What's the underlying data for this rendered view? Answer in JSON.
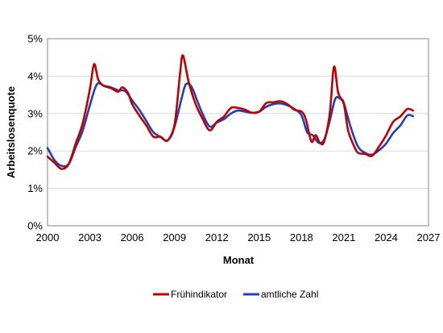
{
  "chart_data": {
    "type": "line",
    "xlabel": "Monat",
    "ylabel": "Arbeitslosenquote",
    "xlim": [
      2000,
      2027
    ],
    "ylim": [
      0,
      5
    ],
    "x_ticks": [
      2000,
      2003,
      2006,
      2009,
      2012,
      2015,
      2018,
      2021,
      2024,
      2027
    ],
    "x_tick_labels": [
      "2000",
      "2003",
      "2006",
      "2009",
      "2012",
      "2015",
      "2018",
      "2021",
      "2024",
      "2027"
    ],
    "y_ticks": [
      0,
      1,
      2,
      3,
      4,
      5
    ],
    "y_tick_labels": [
      "0%",
      "1%",
      "2%",
      "3%",
      "4%",
      "5%"
    ],
    "grid": "horizontal",
    "legend_position": "bottom",
    "series": [
      {
        "name": "Frühindikator",
        "color": "#c00000",
        "x": [
          2000.0,
          2000.5,
          2001.0,
          2001.5,
          2002.0,
          2002.5,
          2003.0,
          2003.3,
          2003.6,
          2004.0,
          2004.5,
          2005.0,
          2005.3,
          2005.7,
          2006.0,
          2006.5,
          2007.0,
          2007.5,
          2008.0,
          2008.5,
          2009.0,
          2009.4,
          2009.6,
          2010.0,
          2010.5,
          2011.0,
          2011.5,
          2012.0,
          2012.5,
          2013.0,
          2013.5,
          2014.0,
          2014.5,
          2015.0,
          2015.5,
          2016.0,
          2016.5,
          2017.0,
          2017.5,
          2018.0,
          2018.3,
          2018.7,
          2019.0,
          2019.3,
          2019.6,
          2020.0,
          2020.3,
          2020.6,
          2021.0,
          2021.3,
          2021.7,
          2022.0,
          2022.5,
          2023.0,
          2023.5,
          2024.0,
          2024.5,
          2025.0,
          2025.5,
          2025.9
        ],
        "y": [
          1.85,
          1.68,
          1.52,
          1.65,
          2.2,
          2.75,
          3.65,
          4.32,
          3.9,
          3.74,
          3.68,
          3.58,
          3.7,
          3.55,
          3.25,
          2.95,
          2.68,
          2.38,
          2.38,
          2.28,
          2.7,
          4.1,
          4.55,
          3.85,
          3.25,
          2.85,
          2.55,
          2.78,
          2.92,
          3.15,
          3.15,
          3.1,
          3.02,
          3.05,
          3.28,
          3.3,
          3.33,
          3.25,
          3.1,
          3.05,
          2.85,
          2.25,
          2.42,
          2.22,
          2.25,
          3.0,
          4.25,
          3.55,
          3.25,
          2.55,
          2.15,
          1.95,
          1.92,
          1.87,
          2.12,
          2.42,
          2.78,
          2.92,
          3.12,
          3.08
        ]
      },
      {
        "name": "amtliche Zahl",
        "color": "#1f3fbf",
        "x": [
          2000.0,
          2000.5,
          2001.0,
          2001.5,
          2002.0,
          2002.5,
          2003.0,
          2003.5,
          2004.0,
          2004.5,
          2005.0,
          2005.5,
          2006.0,
          2006.5,
          2007.0,
          2007.5,
          2008.0,
          2008.5,
          2009.0,
          2009.5,
          2009.8,
          2010.2,
          2010.6,
          2011.0,
          2011.5,
          2012.0,
          2012.5,
          2013.0,
          2013.5,
          2014.0,
          2014.5,
          2015.0,
          2015.5,
          2016.0,
          2016.5,
          2017.0,
          2017.5,
          2018.0,
          2018.4,
          2018.8,
          2019.2,
          2019.6,
          2020.0,
          2020.4,
          2020.8,
          2021.0,
          2021.5,
          2022.0,
          2022.5,
          2023.0,
          2023.5,
          2024.0,
          2024.5,
          2025.0,
          2025.5,
          2025.9
        ],
        "y": [
          2.08,
          1.75,
          1.6,
          1.65,
          2.1,
          2.55,
          3.22,
          3.78,
          3.74,
          3.7,
          3.62,
          3.6,
          3.35,
          3.1,
          2.8,
          2.5,
          2.38,
          2.28,
          2.65,
          3.4,
          3.78,
          3.72,
          3.35,
          2.98,
          2.65,
          2.76,
          2.85,
          3.0,
          3.08,
          3.05,
          3.02,
          3.05,
          3.18,
          3.25,
          3.27,
          3.22,
          3.12,
          2.95,
          2.5,
          2.42,
          2.22,
          2.3,
          2.8,
          3.4,
          3.38,
          3.28,
          2.62,
          2.12,
          1.95,
          1.9,
          2.02,
          2.2,
          2.48,
          2.68,
          2.95,
          2.93
        ]
      }
    ]
  }
}
